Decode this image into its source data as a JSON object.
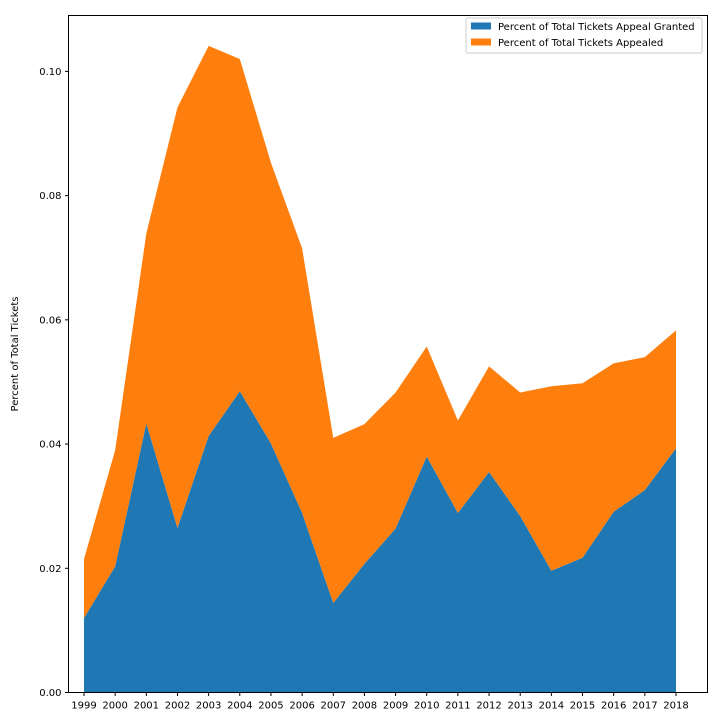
{
  "chart_data": {
    "type": "area",
    "stacked": true,
    "title": "",
    "xlabel": "",
    "ylabel": "Percent of Total Tickets",
    "x": [
      1999,
      2000,
      2001,
      2002,
      2003,
      2004,
      2005,
      2006,
      2007,
      2008,
      2009,
      2010,
      2011,
      2012,
      2013,
      2014,
      2015,
      2016,
      2017,
      2018
    ],
    "ylim": [
      0,
      0.109
    ],
    "yticks": [
      "0.00",
      "0.02",
      "0.04",
      "0.06",
      "0.08",
      "0.10"
    ],
    "grid": false,
    "legend_position": "top-right",
    "series": [
      {
        "name": "Percent of Total Tickets Appeal Granted",
        "color": "#1f77b4",
        "values": [
          0.012,
          0.0203,
          0.0433,
          0.0265,
          0.0413,
          0.0485,
          0.0401,
          0.0289,
          0.0144,
          0.0207,
          0.0264,
          0.038,
          0.0289,
          0.0355,
          0.0284,
          0.0196,
          0.0217,
          0.0291,
          0.0326,
          0.0393
        ]
      },
      {
        "name": "Percent of Total Tickets Appealed",
        "color": "#ff7f0e",
        "values": [
          0.0095,
          0.0187,
          0.0306,
          0.0677,
          0.0628,
          0.0535,
          0.0452,
          0.0426,
          0.0266,
          0.0225,
          0.0219,
          0.0177,
          0.0149,
          0.017,
          0.0199,
          0.0297,
          0.0281,
          0.0239,
          0.0214,
          0.019
        ]
      }
    ]
  }
}
